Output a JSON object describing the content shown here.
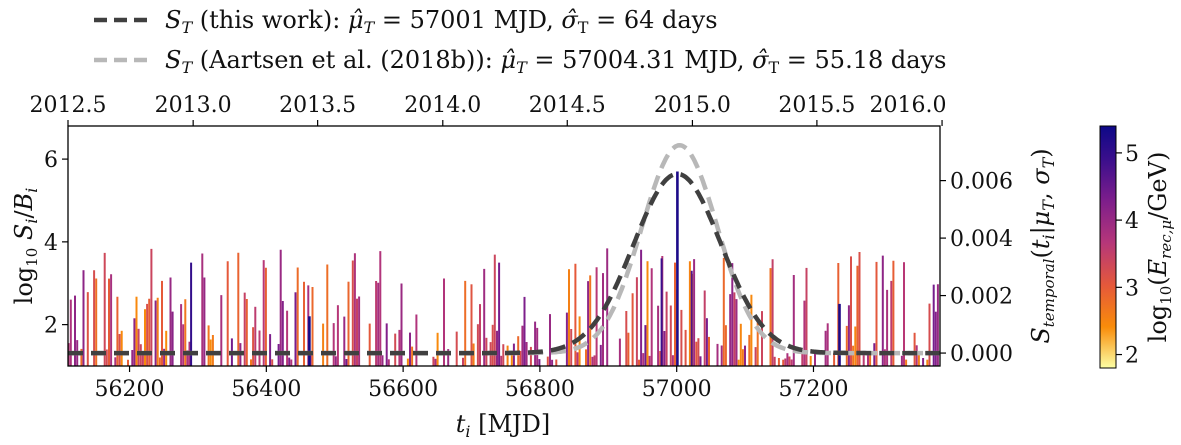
{
  "chart_data": {
    "type": "bar",
    "legend": {
      "placement": "top",
      "entries": [
        {
          "label": "S_T (this work): μ̂_T = 57001 MJD, σ̂_T = 64 days",
          "color": "#404040",
          "style": "dashed"
        },
        {
          "label": "S_T (Aartsen et al. (2018b)): μ̂_T = 57004.31 MJD, σ̂_T = 55.18 days",
          "color": "#b8b8b8",
          "style": "dashed"
        }
      ]
    },
    "xlabel": "t_i [MJD]",
    "ylabel_left": "log10 S_i/B_i",
    "ylabel_right": "S_temporal(t_i|μ_T, σ_T)",
    "colorbar_label": "log10(E_rec,μ/GeV)",
    "xlim": [
      56110,
      57385
    ],
    "ylim_left": [
      1.0,
      6.8
    ],
    "ylim_right": [
      -0.00045,
      0.0079
    ],
    "colorbar_range": [
      1.8,
      5.4
    ],
    "x_ticks": [
      56200,
      56400,
      56600,
      56800,
      57000,
      57200
    ],
    "y_ticks_left": [
      2,
      4,
      6
    ],
    "y_ticks_right": [
      "0.000",
      "0.002",
      "0.004",
      "0.006"
    ],
    "y_ticks_right_values": [
      0.0,
      0.002,
      0.004,
      0.006
    ],
    "top_axis_ticks": [
      "2012.5",
      "2013.0",
      "2013.5",
      "2014.0",
      "2014.5",
      "2015.0",
      "2015.5",
      "2016.0"
    ],
    "top_axis_mjd": [
      56110,
      56293,
      56475,
      56658,
      56840,
      57023,
      57205,
      57388
    ],
    "colorbar_ticks": [
      2,
      3,
      4,
      5
    ],
    "curves": [
      {
        "name": "S_T (this work)",
        "mu": 57001,
        "sigma": 64,
        "color": "#404040"
      },
      {
        "name": "S_T (Aartsen et al. (2018b))",
        "mu": 57004.31,
        "sigma": 55.18,
        "color": "#b8b8b8"
      }
    ],
    "highlight_events": [
      {
        "x": 57001,
        "value": 5.7,
        "energy": 5.2
      },
      {
        "x": 56978,
        "value": 3.6,
        "energy": 4.8
      },
      {
        "x": 57022,
        "value": 3.3,
        "energy": 4.6
      },
      {
        "x": 57238,
        "value": 2.5,
        "energy": 5.2
      },
      {
        "x": 56463,
        "value": 2.2,
        "energy": 5.3
      },
      {
        "x": 56290,
        "value": 3.5,
        "energy": 4.9
      }
    ],
    "events_note": "approx. 400 background events between 56110 and 57385 MJD with log10 S/B between 1.0 and 3.9",
    "colormap": [
      "#fcffa4",
      "#f98c0a",
      "#e5593a",
      "#b5367a",
      "#7a1d8c",
      "#3b0f8c",
      "#0d0887"
    ]
  }
}
